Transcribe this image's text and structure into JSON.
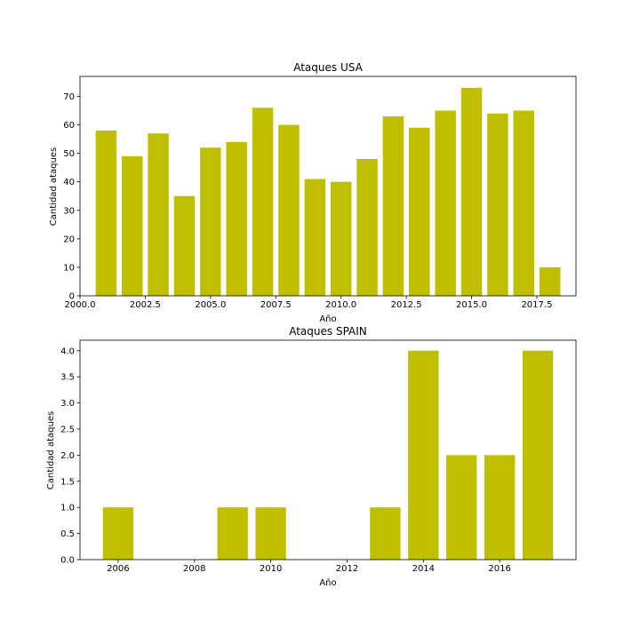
{
  "charts": {
    "bar_color": "#bfbf00",
    "frame_color": "#000000"
  },
  "chart_data": [
    {
      "type": "bar",
      "title": "Ataques USA",
      "xlabel": "Año",
      "ylabel": "Cantidad ataques",
      "x": [
        2001,
        2002,
        2003,
        2004,
        2005,
        2006,
        2007,
        2008,
        2009,
        2010,
        2011,
        2012,
        2013,
        2014,
        2015,
        2016,
        2017,
        2018
      ],
      "values": [
        58,
        49,
        57,
        35,
        52,
        54,
        66,
        60,
        41,
        40,
        48,
        63,
        59,
        65,
        73,
        64,
        65,
        10
      ],
      "xlim": [
        2000,
        2019
      ],
      "ylim": [
        0,
        77
      ],
      "xticks": [
        2000.0,
        2002.5,
        2005.0,
        2007.5,
        2010.0,
        2012.5,
        2015.0,
        2017.5
      ],
      "xtick_labels": [
        "2000.0",
        "2002.5",
        "2005.0",
        "2007.5",
        "2010.0",
        "2012.5",
        "2015.0",
        "2017.5"
      ],
      "yticks": [
        0,
        10,
        20,
        30,
        40,
        50,
        60,
        70
      ],
      "ytick_labels": [
        "0",
        "10",
        "20",
        "30",
        "40",
        "50",
        "60",
        "70"
      ],
      "grid": false,
      "legend": false
    },
    {
      "type": "bar",
      "title": "Ataques SPAIN",
      "xlabel": "Año",
      "ylabel": "Cantidad ataques",
      "x": [
        2006,
        2009,
        2010,
        2013,
        2014,
        2015,
        2016,
        2017
      ],
      "values": [
        1,
        1,
        1,
        1,
        4,
        2,
        2,
        4
      ],
      "xlim": [
        2005,
        2018
      ],
      "ylim": [
        0,
        4.2
      ],
      "xticks": [
        2006,
        2008,
        2010,
        2012,
        2014,
        2016
      ],
      "xtick_labels": [
        "2006",
        "2008",
        "2010",
        "2012",
        "2014",
        "2016"
      ],
      "yticks": [
        0.0,
        0.5,
        1.0,
        1.5,
        2.0,
        2.5,
        3.0,
        3.5,
        4.0
      ],
      "ytick_labels": [
        "0.0",
        "0.5",
        "1.0",
        "1.5",
        "2.0",
        "2.5",
        "3.0",
        "3.5",
        "4.0"
      ],
      "grid": false,
      "legend": false
    }
  ]
}
